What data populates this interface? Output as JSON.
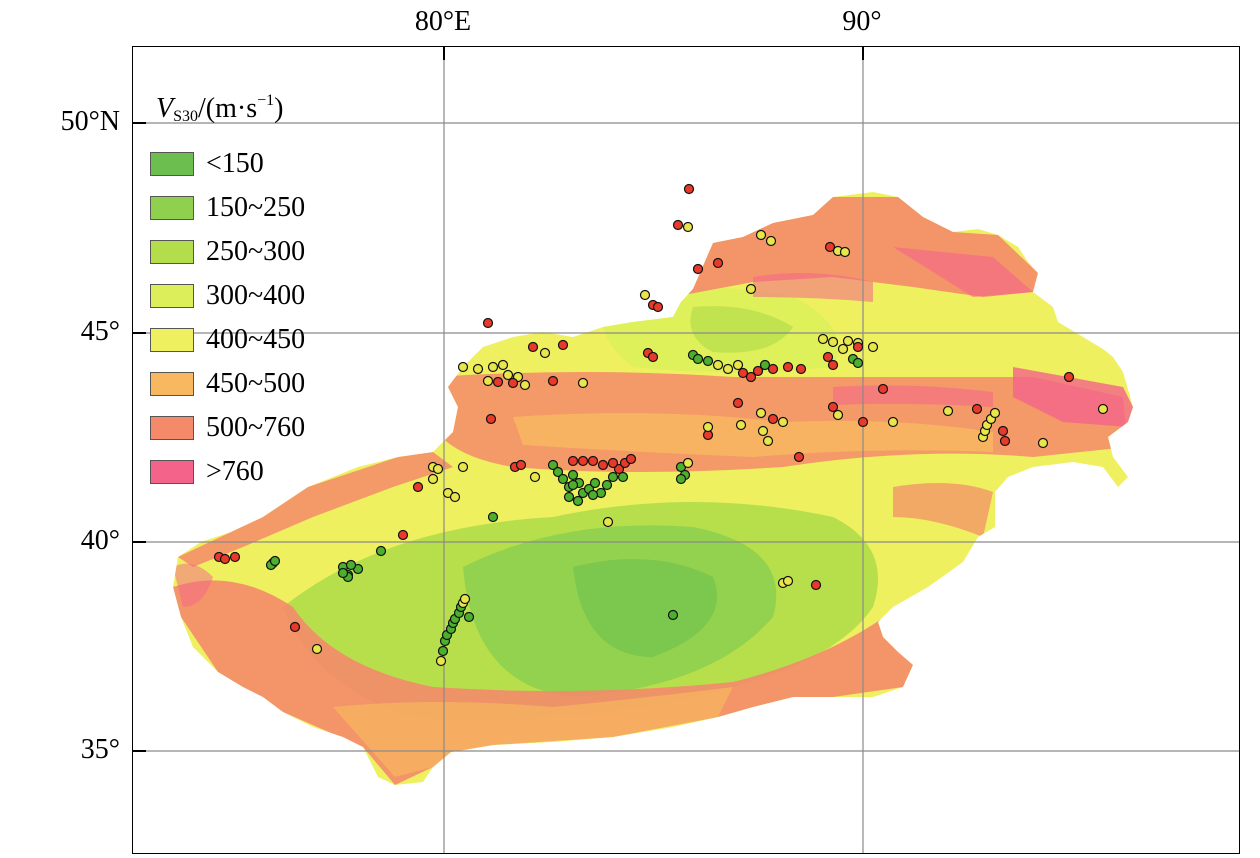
{
  "map": {
    "lon_labels": [
      {
        "lon": 80,
        "text": "80°E"
      },
      {
        "lon": 90,
        "text": "90°"
      }
    ],
    "lat_labels": [
      {
        "lat": 50,
        "text": "50°N"
      },
      {
        "lat": 45,
        "text": "45°"
      },
      {
        "lat": 40,
        "text": "40°"
      },
      {
        "lat": 35,
        "text": "35°"
      }
    ],
    "legend": {
      "title_var": "V",
      "title_sub": "S30",
      "title_unit_pre": "/(m·s",
      "title_sup": "−1",
      "title_unit_post": ")",
      "items": [
        {
          "label": "<150",
          "color": "#6cbf4f"
        },
        {
          "label": "150~250",
          "color": "#8fd04f"
        },
        {
          "label": "250~300",
          "color": "#b3dd4a"
        },
        {
          "label": "300~400",
          "color": "#dcef5a"
        },
        {
          "label": "400~450",
          "color": "#eef060"
        },
        {
          "label": "450~500",
          "color": "#f7b860"
        },
        {
          "label": "500~760",
          "color": "#f48a6a"
        },
        {
          "label": ">760",
          "color": "#f4648a"
        }
      ]
    },
    "station_colors": {
      "soft": "#4caf2e",
      "medium": "#e8e64a",
      "hard": "#e83a2a"
    }
  }
}
